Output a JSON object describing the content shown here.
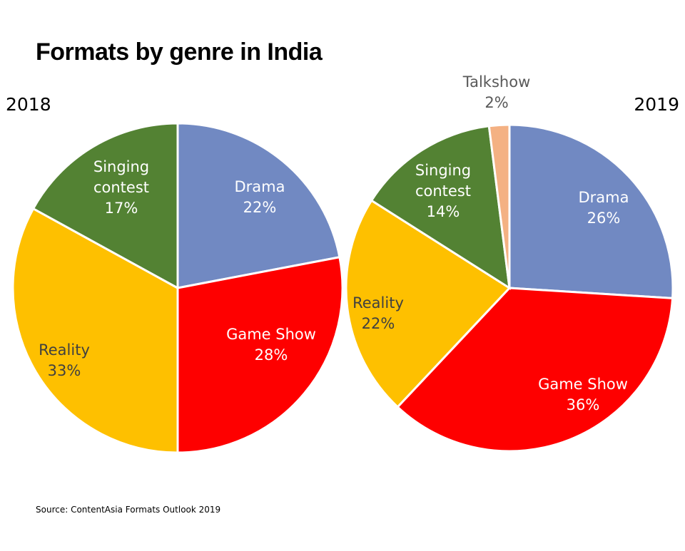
{
  "title": "Formats by genre in India",
  "source": "Source: ContentAsia Formats Outlook 2019",
  "colors": {
    "Drama": "#7189c2",
    "Game Show": "#fe0000",
    "Reality": "#fec000",
    "Singing contest": "#538233",
    "Talkshow": "#f4b183"
  },
  "chart_data": [
    {
      "type": "pie",
      "title": "2018",
      "slices": [
        {
          "label": [
            "Drama"
          ],
          "name": "Drama",
          "value": 22,
          "value_label": "22%"
        },
        {
          "label": [
            "Game Show"
          ],
          "name": "Game Show",
          "value": 28,
          "value_label": "28%"
        },
        {
          "label": [
            "Reality"
          ],
          "name": "Reality",
          "value": 33,
          "value_label": "33%"
        },
        {
          "label": [
            "Singing",
            "contest"
          ],
          "name": "Singing contest",
          "value": 17,
          "value_label": "17%"
        }
      ]
    },
    {
      "type": "pie",
      "title": "2019",
      "slices": [
        {
          "label": [
            "Drama"
          ],
          "name": "Drama",
          "value": 26,
          "value_label": "26%"
        },
        {
          "label": [
            "Game Show"
          ],
          "name": "Game Show",
          "value": 36,
          "value_label": "36%"
        },
        {
          "label": [
            "Reality"
          ],
          "name": "Reality",
          "value": 22,
          "value_label": "22%"
        },
        {
          "label": [
            "Singing",
            "contest"
          ],
          "name": "Singing contest",
          "value": 14,
          "value_label": "14%"
        },
        {
          "label": [
            "Talkshow"
          ],
          "name": "Talkshow",
          "value": 2,
          "value_label": "2%"
        }
      ]
    }
  ]
}
